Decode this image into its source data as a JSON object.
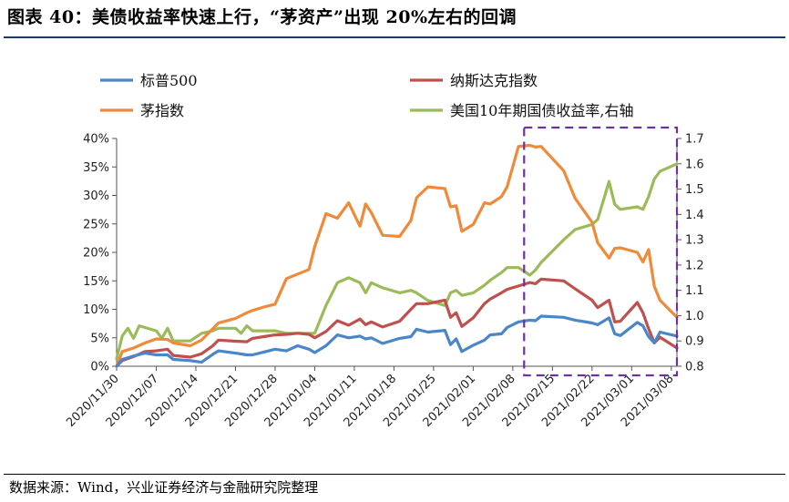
{
  "figure": {
    "title": "图表 40：美债收益率快速上行，“茅资产”出现 20%左右的回调",
    "source": "数据来源：Wind，兴业证券经济与金融研究院整理"
  },
  "chart_data": {
    "type": "line",
    "x": [
      "2020/11/30",
      "2020/12/07",
      "2020/12/14",
      "2020/12/21",
      "2020/12/28",
      "2021/01/04",
      "2021/01/11",
      "2021/01/18",
      "2021/01/25",
      "2021/02/01",
      "2021/02/08",
      "2021/02/15",
      "2021/02/22",
      "2021/03/01",
      "2021/03/08"
    ],
    "x_tick_labels": [
      "2020/11/30",
      "2020/12/07",
      "2020/12/14",
      "2020/12/21",
      "2020/12/28",
      "2021/01/04",
      "2021/01/11",
      "2021/01/18",
      "2021/01/25",
      "2021/02/01",
      "2021/02/08",
      "2021/02/15",
      "2021/02/22",
      "2021/03/01",
      "2021/03/08"
    ],
    "x_range": [
      "2020/11/30",
      "2021/03/09"
    ],
    "y_left": {
      "min": 0,
      "max": 40,
      "ticks": [
        "0%",
        "5%",
        "10%",
        "15%",
        "20%",
        "25%",
        "30%",
        "35%",
        "40%"
      ]
    },
    "y_right": {
      "min": 0.8,
      "max": 1.7,
      "ticks": [
        "0.8",
        "0.9",
        "1.0",
        "1.1",
        "1.2",
        "1.3",
        "1.4",
        "1.5",
        "1.6",
        "1.7"
      ]
    },
    "grid": false,
    "legend_position": "top",
    "highlight_box": {
      "from": "2021/02/10",
      "to": "2021/03/09",
      "color": "#7030a0",
      "style": "dashed"
    },
    "series": [
      {
        "name": "标普500",
        "axis": "left",
        "color": "#4a86c8",
        "points": [
          [
            "2020/11/30",
            0
          ],
          [
            "2020/12/01",
            1.2
          ],
          [
            "2020/12/03",
            1.8
          ],
          [
            "2020/12/05",
            2.3
          ],
          [
            "2020/12/07",
            2.0
          ],
          [
            "2020/12/09",
            2.0
          ],
          [
            "2020/12/10",
            1.2
          ],
          [
            "2020/12/13",
            1.0
          ],
          [
            "2020/12/15",
            0.7
          ],
          [
            "2020/12/17",
            2.1
          ],
          [
            "2020/12/18",
            2.7
          ],
          [
            "2020/12/21",
            2.3
          ],
          [
            "2020/12/23",
            2.0
          ],
          [
            "2020/12/24",
            2.0
          ],
          [
            "2020/12/26",
            2.5
          ],
          [
            "2020/12/28",
            3.0
          ],
          [
            "2020/12/30",
            2.7
          ],
          [
            "2021/01/01",
            3.6
          ],
          [
            "2021/01/03",
            3.0
          ],
          [
            "2021/01/04",
            2.4
          ],
          [
            "2021/01/06",
            3.6
          ],
          [
            "2021/01/08",
            5.5
          ],
          [
            "2021/01/10",
            5.0
          ],
          [
            "2021/01/12",
            5.3
          ],
          [
            "2021/01/13",
            4.8
          ],
          [
            "2021/01/14",
            5.0
          ],
          [
            "2021/01/16",
            4.0
          ],
          [
            "2021/01/19",
            4.9
          ],
          [
            "2021/01/21",
            5.2
          ],
          [
            "2021/01/22",
            6.5
          ],
          [
            "2021/01/24",
            6.0
          ],
          [
            "2021/01/27",
            6.3
          ],
          [
            "2021/01/28",
            3.8
          ],
          [
            "2021/01/29",
            4.8
          ],
          [
            "2021/01/30",
            2.6
          ],
          [
            "2021/02/01",
            3.7
          ],
          [
            "2021/02/03",
            4.6
          ],
          [
            "2021/02/04",
            5.5
          ],
          [
            "2021/02/06",
            5.7
          ],
          [
            "2021/02/07",
            6.8
          ],
          [
            "2021/02/09",
            7.8
          ],
          [
            "2021/02/11",
            8.1
          ],
          [
            "2021/02/12",
            8.0
          ],
          [
            "2021/02/13",
            8.8
          ],
          [
            "2021/02/17",
            8.6
          ],
          [
            "2021/02/19",
            8.1
          ],
          [
            "2021/02/22",
            7.6
          ],
          [
            "2021/02/23",
            7.3
          ],
          [
            "2021/02/25",
            8.5
          ],
          [
            "2021/02/26",
            5.7
          ],
          [
            "2021/02/27",
            5.4
          ],
          [
            "2021/03/02",
            7.7
          ],
          [
            "2021/03/03",
            7.1
          ],
          [
            "2021/03/04",
            5.2
          ],
          [
            "2021/03/05",
            4.1
          ],
          [
            "2021/03/06",
            6.0
          ],
          [
            "2021/03/09",
            5.3
          ]
        ]
      },
      {
        "name": "纳斯达克指数",
        "axis": "left",
        "color": "#c0504d",
        "points": [
          [
            "2020/11/30",
            0
          ],
          [
            "2020/12/01",
            1.0
          ],
          [
            "2020/12/03",
            1.7
          ],
          [
            "2020/12/05",
            2.6
          ],
          [
            "2020/12/07",
            2.7
          ],
          [
            "2020/12/09",
            3.0
          ],
          [
            "2020/12/10",
            1.9
          ],
          [
            "2020/12/13",
            1.6
          ],
          [
            "2020/12/15",
            2.2
          ],
          [
            "2020/12/17",
            3.6
          ],
          [
            "2020/12/18",
            4.6
          ],
          [
            "2020/12/21",
            4.4
          ],
          [
            "2020/12/23",
            4.3
          ],
          [
            "2020/12/24",
            4.9
          ],
          [
            "2020/12/26",
            5.2
          ],
          [
            "2020/12/28",
            5.5
          ],
          [
            "2020/12/30",
            5.6
          ],
          [
            "2021/01/01",
            5.8
          ],
          [
            "2021/01/03",
            5.6
          ],
          [
            "2021/01/04",
            5.0
          ],
          [
            "2021/01/06",
            6.1
          ],
          [
            "2021/01/08",
            8.0
          ],
          [
            "2021/01/10",
            7.2
          ],
          [
            "2021/01/12",
            8.3
          ],
          [
            "2021/01/13",
            7.3
          ],
          [
            "2021/01/14",
            7.8
          ],
          [
            "2021/01/16",
            6.9
          ],
          [
            "2021/01/19",
            7.9
          ],
          [
            "2021/01/21",
            10.0
          ],
          [
            "2021/01/22",
            11.0
          ],
          [
            "2021/01/24",
            11.0
          ],
          [
            "2021/01/27",
            11.6
          ],
          [
            "2021/01/28",
            8.6
          ],
          [
            "2021/01/29",
            9.4
          ],
          [
            "2021/01/30",
            7.0
          ],
          [
            "2021/02/01",
            8.5
          ],
          [
            "2021/02/03",
            11.0
          ],
          [
            "2021/02/04",
            11.8
          ],
          [
            "2021/02/06",
            12.9
          ],
          [
            "2021/02/07",
            13.5
          ],
          [
            "2021/02/09",
            14.1
          ],
          [
            "2021/02/11",
            14.7
          ],
          [
            "2021/02/12",
            14.5
          ],
          [
            "2021/02/13",
            15.3
          ],
          [
            "2021/02/17",
            15.0
          ],
          [
            "2021/02/19",
            13.6
          ],
          [
            "2021/02/22",
            11.6
          ],
          [
            "2021/02/23",
            10.3
          ],
          [
            "2021/02/25",
            11.6
          ],
          [
            "2021/02/26",
            7.8
          ],
          [
            "2021/02/27",
            7.9
          ],
          [
            "2021/03/02",
            11.2
          ],
          [
            "2021/03/03",
            9.4
          ],
          [
            "2021/03/04",
            6.6
          ],
          [
            "2021/03/05",
            4.1
          ],
          [
            "2021/03/06",
            5.1
          ],
          [
            "2021/03/09",
            3.2
          ]
        ]
      },
      {
        "name": "茅指数",
        "axis": "left",
        "color": "#f08a3a",
        "points": [
          [
            "2020/11/30",
            0
          ],
          [
            "2020/12/01",
            2.6
          ],
          [
            "2020/12/03",
            3.2
          ],
          [
            "2020/12/05",
            4.1
          ],
          [
            "2020/12/07",
            4.8
          ],
          [
            "2020/12/09",
            4.7
          ],
          [
            "2020/12/10",
            4.1
          ],
          [
            "2020/12/13",
            3.6
          ],
          [
            "2020/12/15",
            4.6
          ],
          [
            "2020/12/17",
            6.6
          ],
          [
            "2020/12/18",
            7.6
          ],
          [
            "2020/12/21",
            8.4
          ],
          [
            "2020/12/23",
            9.4
          ],
          [
            "2020/12/24",
            9.8
          ],
          [
            "2020/12/26",
            10.4
          ],
          [
            "2020/12/28",
            10.9
          ],
          [
            "2020/12/30",
            15.4
          ],
          [
            "2021/01/01",
            16.2
          ],
          [
            "2021/01/03",
            17.0
          ],
          [
            "2021/01/04",
            21.0
          ],
          [
            "2021/01/06",
            26.8
          ],
          [
            "2021/01/08",
            26.0
          ],
          [
            "2021/01/10",
            28.7
          ],
          [
            "2021/01/12",
            24.6
          ],
          [
            "2021/01/13",
            28.5
          ],
          [
            "2021/01/14",
            27.0
          ],
          [
            "2021/01/16",
            23.0
          ],
          [
            "2021/01/19",
            22.8
          ],
          [
            "2021/01/21",
            25.6
          ],
          [
            "2021/01/22",
            29.6
          ],
          [
            "2021/01/24",
            31.5
          ],
          [
            "2021/01/27",
            31.2
          ],
          [
            "2021/01/28",
            28.0
          ],
          [
            "2021/01/29",
            28.2
          ],
          [
            "2021/01/30",
            23.7
          ],
          [
            "2021/02/01",
            24.9
          ],
          [
            "2021/02/03",
            28.7
          ],
          [
            "2021/02/04",
            28.5
          ],
          [
            "2021/02/06",
            29.8
          ],
          [
            "2021/02/07",
            31.5
          ],
          [
            "2021/02/09",
            38.6
          ],
          [
            "2021/02/11",
            38.8
          ],
          [
            "2021/02/12",
            38.5
          ],
          [
            "2021/02/13",
            38.6
          ],
          [
            "2021/02/17",
            34.3
          ],
          [
            "2021/02/19",
            29.5
          ],
          [
            "2021/02/22",
            25.3
          ],
          [
            "2021/02/23",
            21.7
          ],
          [
            "2021/02/25",
            19.0
          ],
          [
            "2021/02/26",
            20.7
          ],
          [
            "2021/02/27",
            20.8
          ],
          [
            "2021/03/02",
            20.0
          ],
          [
            "2021/03/03",
            18.3
          ],
          [
            "2021/03/04",
            20.5
          ],
          [
            "2021/03/05",
            14.0
          ],
          [
            "2021/03/06",
            11.6
          ],
          [
            "2021/03/09",
            8.6
          ]
        ]
      },
      {
        "name": "美国10年期国债收益率,右轴",
        "axis": "right",
        "color": "#9bbb59",
        "points": [
          [
            "2020/11/30",
            0.83
          ],
          [
            "2020/12/01",
            0.92
          ],
          [
            "2020/12/02",
            0.95
          ],
          [
            "2020/12/03",
            0.91
          ],
          [
            "2020/12/04",
            0.96
          ],
          [
            "2020/12/07",
            0.94
          ],
          [
            "2020/12/08",
            0.91
          ],
          [
            "2020/12/09",
            0.95
          ],
          [
            "2020/12/10",
            0.9
          ],
          [
            "2020/12/13",
            0.9
          ],
          [
            "2020/12/15",
            0.93
          ],
          [
            "2020/12/17",
            0.94
          ],
          [
            "2020/12/18",
            0.95
          ],
          [
            "2020/12/21",
            0.95
          ],
          [
            "2020/12/22",
            0.93
          ],
          [
            "2020/12/23",
            0.96
          ],
          [
            "2020/12/24",
            0.94
          ],
          [
            "2020/12/26",
            0.94
          ],
          [
            "2020/12/28",
            0.94
          ],
          [
            "2020/12/30",
            0.93
          ],
          [
            "2021/01/01",
            0.93
          ],
          [
            "2021/01/03",
            0.93
          ],
          [
            "2021/01/04",
            0.93
          ],
          [
            "2021/01/06",
            1.04
          ],
          [
            "2021/01/08",
            1.13
          ],
          [
            "2021/01/10",
            1.15
          ],
          [
            "2021/01/12",
            1.13
          ],
          [
            "2021/01/13",
            1.09
          ],
          [
            "2021/01/14",
            1.13
          ],
          [
            "2021/01/16",
            1.11
          ],
          [
            "2021/01/19",
            1.09
          ],
          [
            "2021/01/21",
            1.1
          ],
          [
            "2021/01/22",
            1.09
          ],
          [
            "2021/01/24",
            1.06
          ],
          [
            "2021/01/27",
            1.04
          ],
          [
            "2021/01/28",
            1.09
          ],
          [
            "2021/01/29",
            1.1
          ],
          [
            "2021/01/30",
            1.08
          ],
          [
            "2021/02/01",
            1.09
          ],
          [
            "2021/02/03",
            1.12
          ],
          [
            "2021/02/04",
            1.14
          ],
          [
            "2021/02/06",
            1.17
          ],
          [
            "2021/02/07",
            1.19
          ],
          [
            "2021/02/09",
            1.19
          ],
          [
            "2021/02/11",
            1.16
          ],
          [
            "2021/02/12",
            1.18
          ],
          [
            "2021/02/13",
            1.21
          ],
          [
            "2021/02/17",
            1.3
          ],
          [
            "2021/02/19",
            1.34
          ],
          [
            "2021/02/22",
            1.36
          ],
          [
            "2021/02/23",
            1.38
          ],
          [
            "2021/02/25",
            1.53
          ],
          [
            "2021/02/26",
            1.44
          ],
          [
            "2021/02/27",
            1.42
          ],
          [
            "2021/03/02",
            1.43
          ],
          [
            "2021/03/03",
            1.42
          ],
          [
            "2021/03/04",
            1.47
          ],
          [
            "2021/03/05",
            1.54
          ],
          [
            "2021/03/06",
            1.57
          ],
          [
            "2021/03/09",
            1.6
          ]
        ]
      }
    ]
  }
}
